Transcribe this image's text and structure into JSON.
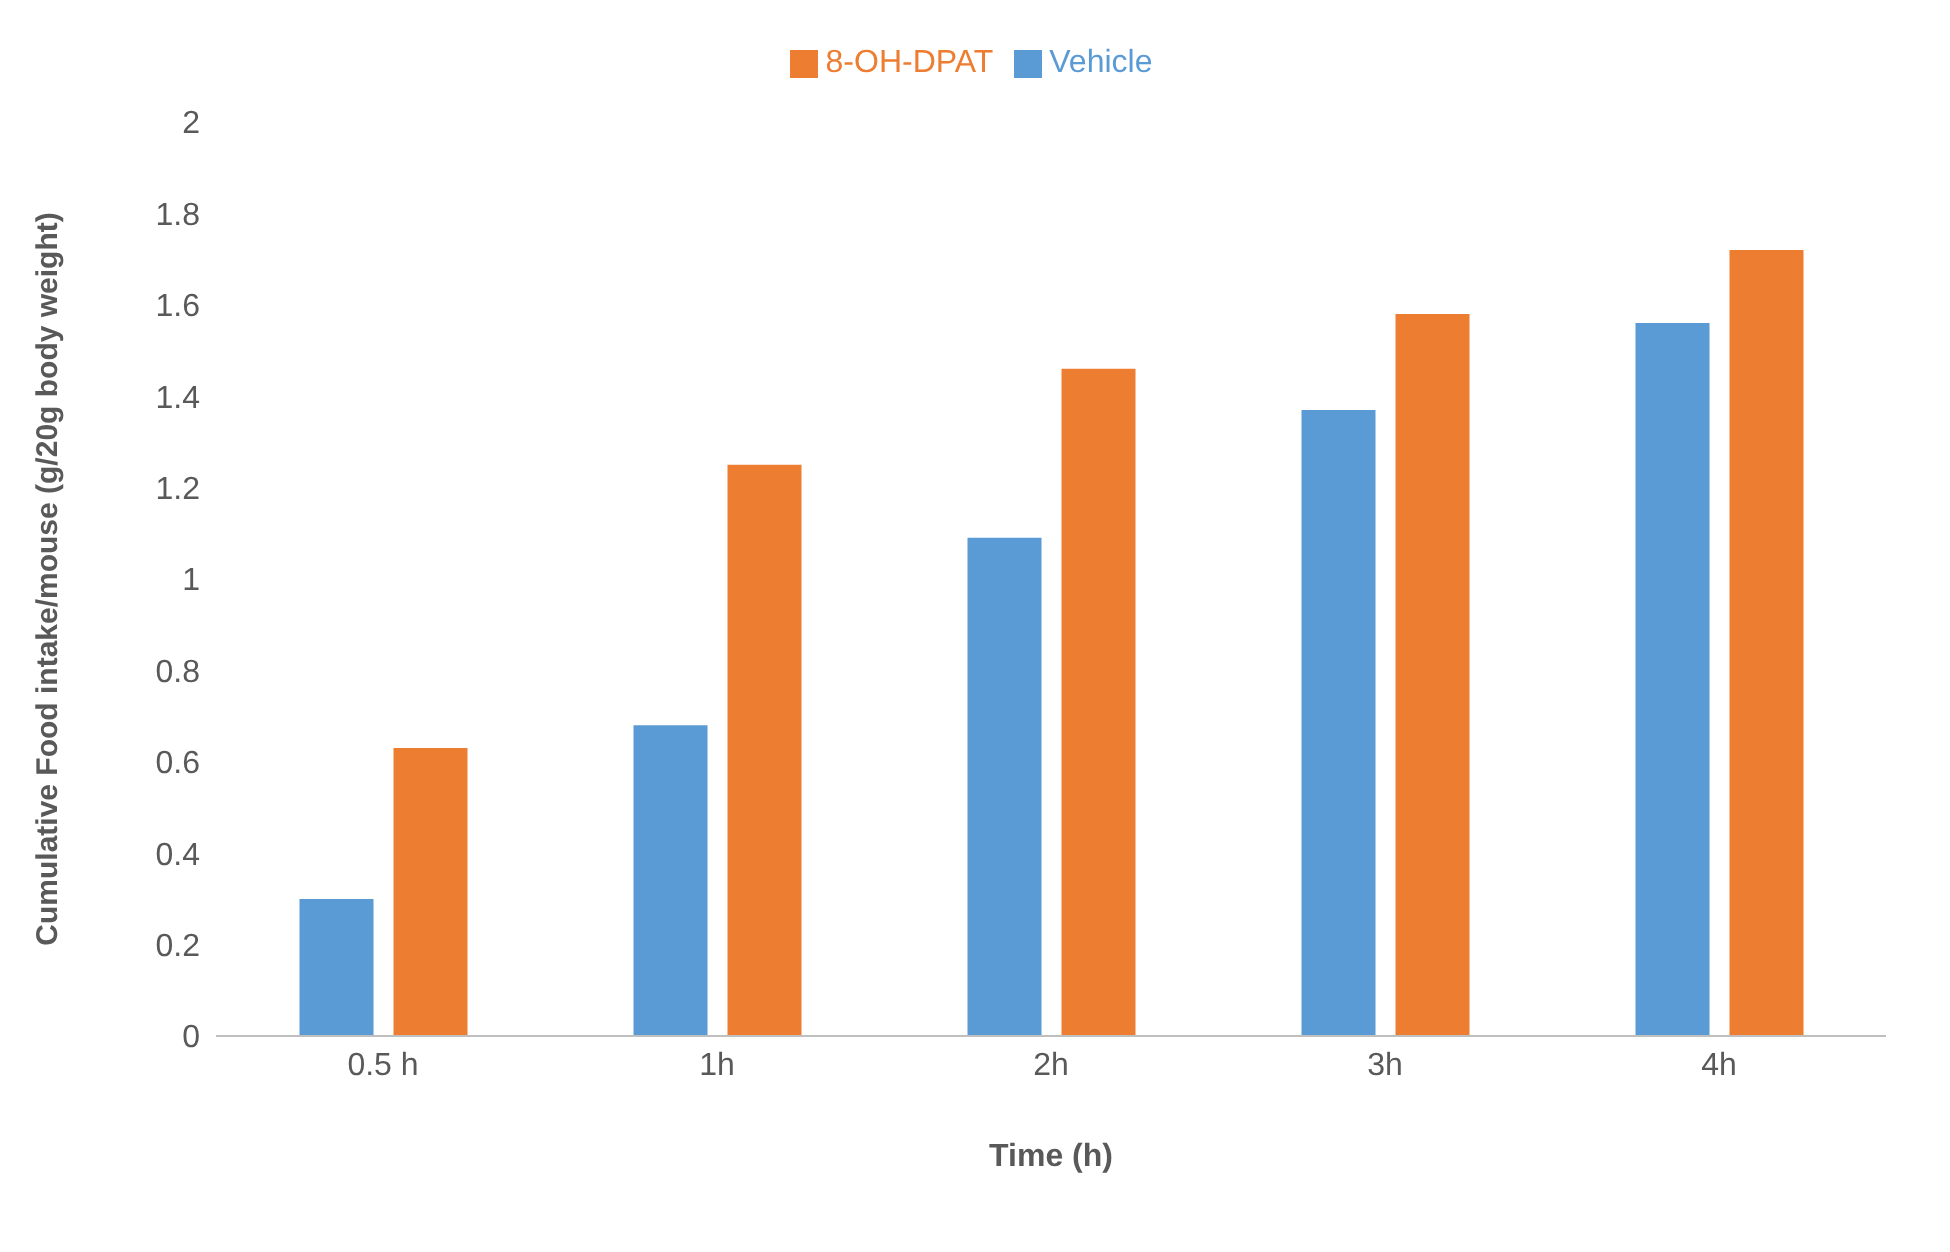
{
  "chart_data": {
    "type": "bar",
    "xlabel": "Time (h)",
    "ylabel": "Cumulative Food intake/mouse (g/20g body weight)",
    "categories": [
      "0.5 h",
      "1h",
      "2h",
      "3h",
      "4h"
    ],
    "series": [
      {
        "name": "Vehicle",
        "color": "#5b9bd5",
        "values": [
          0.3,
          0.68,
          1.09,
          1.37,
          1.56
        ]
      },
      {
        "name": "8-OH-DPAT",
        "color": "#ed7d31",
        "values": [
          0.63,
          1.25,
          1.46,
          1.58,
          1.72
        ]
      }
    ],
    "ylim": [
      0,
      2
    ],
    "yticks": [
      0,
      0.2,
      0.4,
      0.6,
      0.8,
      1,
      1.2,
      1.4,
      1.6,
      1.8,
      2
    ],
    "grid": false,
    "legend": "top"
  }
}
